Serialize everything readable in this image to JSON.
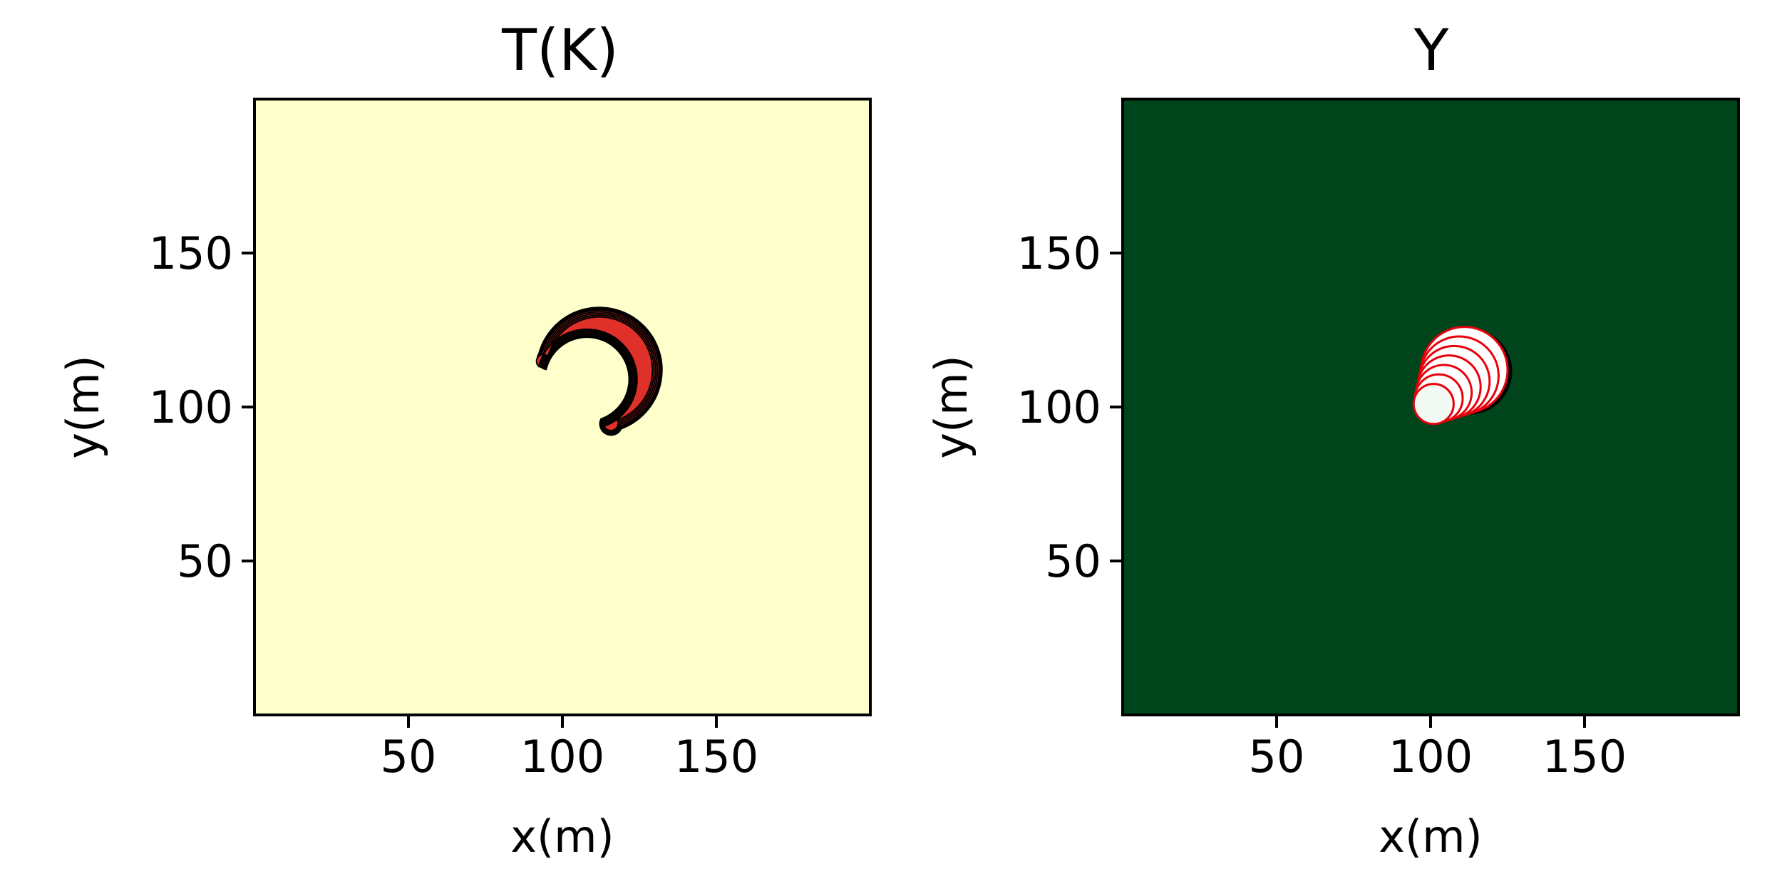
{
  "chart_data": [
    {
      "type": "heatmap",
      "title": "T(K)",
      "xlabel": "x(m)",
      "ylabel": "y(m)",
      "xlim": [
        0,
        200
      ],
      "ylim": [
        0,
        200
      ],
      "xticks": [
        50,
        100,
        150
      ],
      "yticks": [
        50,
        100,
        150
      ],
      "colors": {
        "background": "#ffffcc",
        "feature": "#e0302a",
        "contour": "#000000"
      },
      "feature": {
        "shape": "crescent",
        "center": [
          112,
          112
        ],
        "outer_radius": 20,
        "inner_radius": 14,
        "inner_center_offset": [
          -4,
          -3
        ],
        "start_angle_deg": -70,
        "end_angle_deg": 165
      }
    },
    {
      "type": "heatmap",
      "title": "Y",
      "xlabel": "x(m)",
      "ylabel": "y(m)",
      "xlim": [
        0,
        200
      ],
      "ylim": [
        0,
        200
      ],
      "xticks": [
        50,
        100,
        150
      ],
      "yticks": [
        50,
        100,
        150
      ],
      "colors": {
        "background": "#00441b",
        "feature": "#ffffff",
        "core": "#f3faf3",
        "contour": "#e8000b",
        "rim": "#000000"
      },
      "feature": {
        "shape": "nested-circles",
        "start_center": [
          101,
          101
        ],
        "end_center": [
          111,
          112
        ],
        "start_radius": 6.5,
        "end_radius": 14,
        "rings": 7,
        "rim_offset": [
          1.5,
          1.5
        ]
      }
    }
  ]
}
